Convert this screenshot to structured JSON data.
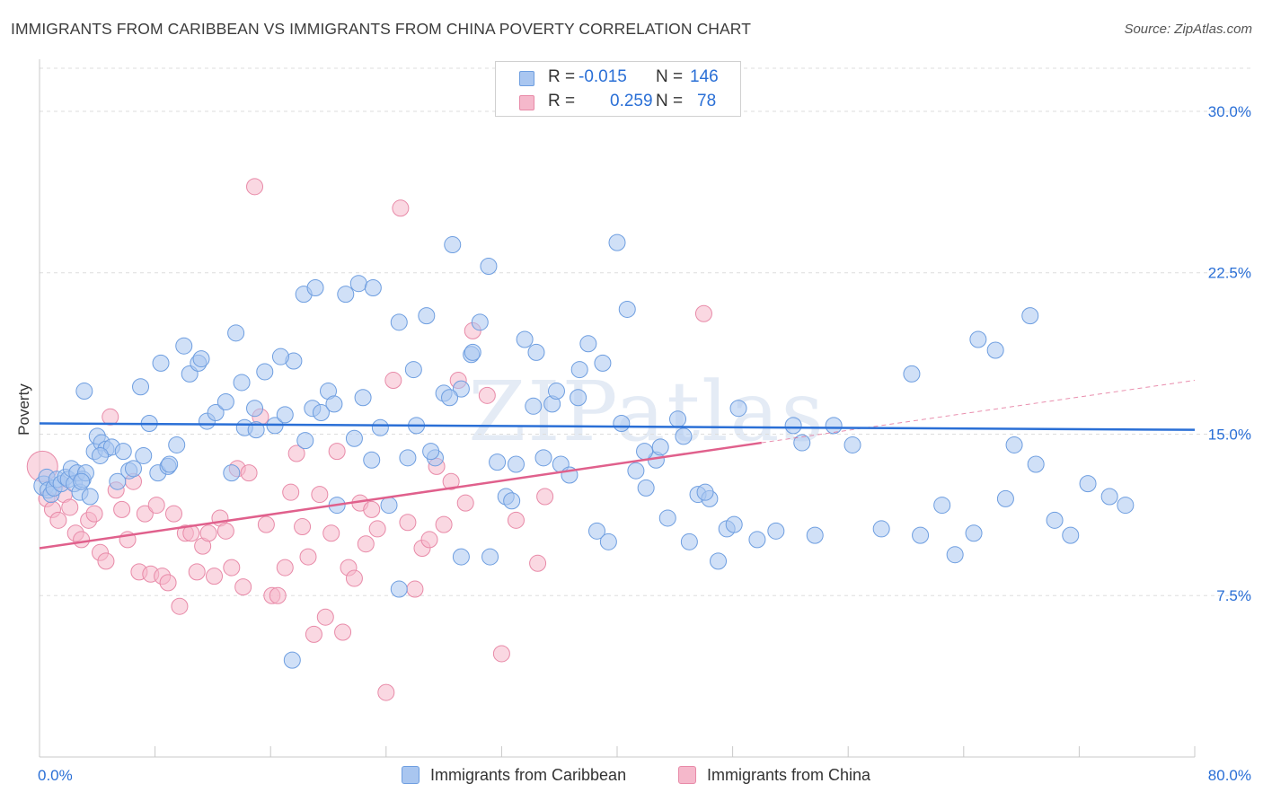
{
  "title": "IMMIGRANTS FROM CARIBBEAN VS IMMIGRANTS FROM CHINA POVERTY CORRELATION CHART",
  "source": "Source: ZipAtlas.com",
  "legend": {
    "rows": [
      {
        "r_label": "R =",
        "r_value": "-0.015",
        "n_label": "N =",
        "n_value": "146"
      },
      {
        "r_label": "R =",
        "r_value": "0.259",
        "n_label": "N =",
        "n_value": "78"
      }
    ]
  },
  "bottom_legend": [
    "Immigrants from Caribbean",
    "Immigrants from China"
  ],
  "colors": {
    "caribbean_fill": "#a9c6f0",
    "caribbean_stroke": "#6e9ee0",
    "caribbean_line": "#2a6fd6",
    "china_fill": "#f5b8cb",
    "china_stroke": "#e88aa8",
    "china_line": "#e0608c",
    "axis_text": "#2a6fd6",
    "grid": "#dddddd"
  },
  "chart_data": {
    "type": "scatter",
    "title": "IMMIGRANTS FROM CARIBBEAN VS IMMIGRANTS FROM CHINA POVERTY CORRELATION CHART",
    "xlabel": "",
    "ylabel": "Poverty",
    "xlim": [
      0,
      80
    ],
    "ylim": [
      0,
      32
    ],
    "x_tick_labels": [
      "0.0%",
      "80.0%"
    ],
    "y_ticks": [
      7.5,
      15.0,
      22.5,
      30.0
    ],
    "y_tick_labels": [
      "7.5%",
      "15.0%",
      "22.5%",
      "30.0%"
    ],
    "grid": true,
    "watermark": "ZIPatlas",
    "series": [
      {
        "name": "Immigrants from Caribbean",
        "r": -0.015,
        "n": 146,
        "trend": {
          "x": [
            0,
            80
          ],
          "y": [
            15.5,
            15.2
          ]
        },
        "points": [
          [
            0.3,
            12.6
          ],
          [
            0.5,
            13.0
          ],
          [
            0.6,
            12.4
          ],
          [
            0.8,
            12.2
          ],
          [
            1.0,
            12.5
          ],
          [
            1.2,
            12.9
          ],
          [
            1.5,
            12.7
          ],
          [
            1.8,
            13.0
          ],
          [
            2.0,
            12.9
          ],
          [
            2.2,
            13.4
          ],
          [
            2.4,
            12.7
          ],
          [
            2.6,
            13.2
          ],
          [
            2.8,
            12.3
          ],
          [
            3.0,
            12.9
          ],
          [
            3.2,
            13.2
          ],
          [
            3.5,
            12.1
          ],
          [
            3.8,
            14.2
          ],
          [
            4.0,
            14.9
          ],
          [
            4.3,
            14.6
          ],
          [
            4.6,
            14.3
          ],
          [
            5.0,
            14.4
          ],
          [
            5.4,
            12.8
          ],
          [
            5.8,
            14.2
          ],
          [
            6.2,
            13.3
          ],
          [
            3.1,
            17.0
          ],
          [
            4.2,
            14.0
          ],
          [
            2.9,
            12.8
          ],
          [
            6.5,
            13.4
          ],
          [
            7.0,
            17.2
          ],
          [
            7.6,
            15.5
          ],
          [
            8.2,
            13.2
          ],
          [
            8.9,
            13.5
          ],
          [
            9.5,
            14.5
          ],
          [
            10.0,
            19.1
          ],
          [
            10.4,
            17.8
          ],
          [
            11.0,
            18.3
          ],
          [
            11.6,
            15.6
          ],
          [
            12.2,
            16.0
          ],
          [
            12.9,
            16.5
          ],
          [
            13.6,
            19.7
          ],
          [
            14.2,
            15.3
          ],
          [
            14.9,
            16.2
          ],
          [
            15.6,
            17.9
          ],
          [
            16.3,
            15.4
          ],
          [
            17.0,
            15.9
          ],
          [
            17.6,
            18.4
          ],
          [
            18.3,
            21.5
          ],
          [
            18.9,
            16.2
          ],
          [
            19.5,
            16.0
          ],
          [
            20.0,
            17.0
          ],
          [
            20.6,
            11.7
          ],
          [
            21.2,
            21.5
          ],
          [
            21.8,
            14.8
          ],
          [
            22.4,
            16.7
          ],
          [
            23.0,
            13.8
          ],
          [
            23.6,
            15.3
          ],
          [
            24.2,
            11.7
          ],
          [
            24.9,
            20.2
          ],
          [
            25.5,
            13.9
          ],
          [
            26.1,
            15.4
          ],
          [
            26.8,
            20.5
          ],
          [
            27.4,
            13.9
          ],
          [
            28.0,
            16.9
          ],
          [
            28.6,
            23.8
          ],
          [
            29.2,
            17.1
          ],
          [
            29.9,
            18.7
          ],
          [
            30.5,
            20.2
          ],
          [
            31.1,
            22.8
          ],
          [
            31.7,
            13.7
          ],
          [
            32.3,
            12.1
          ],
          [
            33.0,
            13.6
          ],
          [
            33.6,
            19.4
          ],
          [
            34.2,
            16.3
          ],
          [
            34.9,
            13.9
          ],
          [
            35.5,
            16.4
          ],
          [
            36.1,
            13.6
          ],
          [
            36.7,
            13.1
          ],
          [
            37.4,
            18.0
          ],
          [
            38.0,
            19.2
          ],
          [
            38.6,
            10.5
          ],
          [
            39.4,
            10.0
          ],
          [
            40.0,
            23.9
          ],
          [
            40.7,
            20.8
          ],
          [
            41.3,
            13.3
          ],
          [
            42.0,
            12.5
          ],
          [
            42.7,
            13.8
          ],
          [
            43.5,
            11.1
          ],
          [
            44.2,
            15.7
          ],
          [
            45.0,
            10.0
          ],
          [
            45.6,
            12.2
          ],
          [
            46.4,
            12.0
          ],
          [
            47.0,
            9.1
          ],
          [
            47.6,
            10.6
          ],
          [
            48.4,
            16.2
          ],
          [
            49.7,
            10.1
          ],
          [
            51.0,
            10.5
          ],
          [
            52.2,
            15.4
          ],
          [
            52.8,
            14.6
          ],
          [
            53.7,
            10.3
          ],
          [
            60.4,
            17.8
          ],
          [
            65.0,
            19.4
          ],
          [
            66.2,
            18.9
          ],
          [
            68.6,
            20.5
          ],
          [
            17.5,
            4.5
          ],
          [
            24.9,
            7.8
          ],
          [
            29.2,
            9.3
          ],
          [
            31.2,
            9.3
          ],
          [
            13.3,
            13.2
          ],
          [
            18.4,
            14.7
          ],
          [
            22.1,
            22.0
          ],
          [
            7.2,
            14.0
          ],
          [
            8.4,
            18.3
          ],
          [
            9.0,
            13.6
          ],
          [
            11.2,
            18.5
          ],
          [
            14.0,
            17.4
          ],
          [
            15.0,
            15.2
          ],
          [
            16.7,
            18.6
          ],
          [
            19.1,
            21.8
          ],
          [
            20.4,
            16.4
          ],
          [
            23.1,
            21.8
          ],
          [
            25.9,
            18.0
          ],
          [
            27.1,
            14.2
          ],
          [
            28.4,
            16.7
          ],
          [
            30.0,
            18.8
          ],
          [
            32.7,
            11.9
          ],
          [
            34.4,
            18.8
          ],
          [
            35.8,
            17.0
          ],
          [
            37.3,
            16.7
          ],
          [
            39.0,
            18.3
          ],
          [
            40.3,
            15.5
          ],
          [
            41.9,
            14.2
          ],
          [
            43.0,
            14.4
          ],
          [
            44.6,
            14.9
          ],
          [
            46.1,
            12.3
          ],
          [
            48.1,
            10.8
          ],
          [
            55.0,
            15.4
          ],
          [
            56.3,
            14.5
          ],
          [
            58.3,
            10.6
          ],
          [
            61.0,
            10.3
          ],
          [
            62.5,
            11.7
          ],
          [
            63.4,
            9.4
          ],
          [
            64.7,
            10.4
          ],
          [
            66.9,
            12.0
          ],
          [
            67.5,
            14.5
          ],
          [
            69.0,
            13.6
          ],
          [
            70.3,
            11.0
          ],
          [
            71.4,
            10.3
          ],
          [
            72.6,
            12.7
          ],
          [
            74.1,
            12.1
          ],
          [
            75.2,
            11.7
          ]
        ]
      },
      {
        "name": "Immigrants from China",
        "r": 0.259,
        "n": 78,
        "trend": {
          "x": [
            0,
            50
          ],
          "y": [
            9.7,
            14.6
          ]
        },
        "trend_extension": {
          "x": [
            50,
            80
          ],
          "y": [
            14.6,
            17.5
          ]
        },
        "points": [
          [
            0.2,
            13.5
          ],
          [
            0.5,
            12.0
          ],
          [
            0.9,
            11.5
          ],
          [
            1.3,
            11.0
          ],
          [
            1.7,
            12.2
          ],
          [
            2.1,
            11.6
          ],
          [
            2.5,
            10.4
          ],
          [
            2.9,
            10.1
          ],
          [
            3.4,
            11.0
          ],
          [
            3.8,
            11.3
          ],
          [
            4.2,
            9.5
          ],
          [
            4.6,
            9.1
          ],
          [
            4.9,
            15.8
          ],
          [
            5.3,
            12.4
          ],
          [
            5.7,
            11.5
          ],
          [
            6.1,
            10.1
          ],
          [
            6.5,
            12.8
          ],
          [
            6.9,
            8.6
          ],
          [
            7.3,
            11.3
          ],
          [
            7.7,
            8.5
          ],
          [
            8.1,
            11.7
          ],
          [
            8.5,
            8.4
          ],
          [
            8.9,
            8.1
          ],
          [
            9.3,
            11.3
          ],
          [
            9.7,
            7.0
          ],
          [
            10.1,
            10.4
          ],
          [
            10.5,
            10.4
          ],
          [
            10.9,
            8.6
          ],
          [
            11.3,
            9.8
          ],
          [
            11.7,
            10.4
          ],
          [
            12.1,
            8.4
          ],
          [
            12.5,
            11.1
          ],
          [
            12.9,
            10.5
          ],
          [
            13.3,
            8.8
          ],
          [
            13.7,
            13.4
          ],
          [
            14.1,
            7.9
          ],
          [
            14.5,
            13.2
          ],
          [
            14.9,
            26.5
          ],
          [
            15.3,
            15.8
          ],
          [
            15.7,
            10.8
          ],
          [
            16.1,
            7.5
          ],
          [
            16.5,
            7.5
          ],
          [
            17.0,
            8.8
          ],
          [
            17.4,
            12.3
          ],
          [
            17.8,
            14.1
          ],
          [
            18.2,
            10.7
          ],
          [
            18.6,
            9.3
          ],
          [
            19.0,
            5.7
          ],
          [
            19.4,
            12.2
          ],
          [
            19.8,
            6.5
          ],
          [
            20.2,
            10.4
          ],
          [
            20.6,
            14.2
          ],
          [
            21.0,
            5.8
          ],
          [
            21.4,
            8.8
          ],
          [
            21.8,
            8.3
          ],
          [
            22.2,
            11.8
          ],
          [
            22.6,
            9.9
          ],
          [
            23.0,
            11.5
          ],
          [
            23.4,
            10.6
          ],
          [
            24.0,
            3.0
          ],
          [
            24.5,
            17.5
          ],
          [
            25.0,
            25.5
          ],
          [
            25.5,
            10.9
          ],
          [
            26.0,
            7.8
          ],
          [
            26.5,
            9.7
          ],
          [
            27.0,
            10.1
          ],
          [
            27.5,
            13.5
          ],
          [
            28.0,
            10.8
          ],
          [
            28.5,
            12.8
          ],
          [
            29.0,
            17.5
          ],
          [
            29.5,
            11.8
          ],
          [
            30.0,
            19.8
          ],
          [
            31.0,
            16.8
          ],
          [
            32.0,
            4.8
          ],
          [
            33.0,
            11.0
          ],
          [
            34.5,
            9.0
          ],
          [
            35.0,
            12.1
          ],
          [
            46.0,
            20.6
          ]
        ]
      }
    ]
  }
}
